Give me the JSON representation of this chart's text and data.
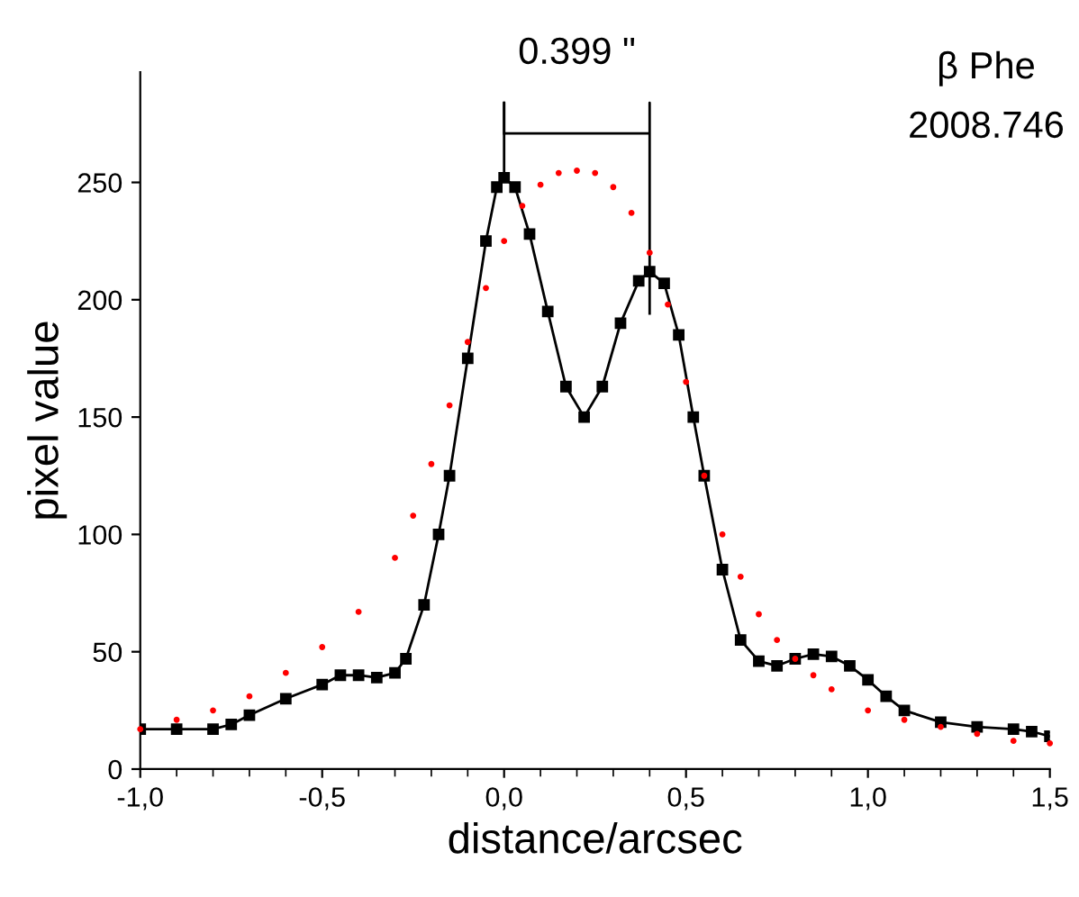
{
  "chart_data": {
    "type": "line",
    "xlabel": "distance/arcsec",
    "ylabel": "pixel value",
    "annotations": [
      "0.399 \"",
      "β Phe",
      "2008.746"
    ],
    "series": [
      {
        "color": "#000000",
        "marker": "square",
        "x": [
          -1.0,
          -0.9,
          -0.8,
          -0.75,
          -0.7,
          -0.6,
          -0.5,
          -0.45,
          -0.4,
          -0.35,
          -0.3,
          -0.27,
          -0.22,
          -0.18,
          -0.15,
          -0.1,
          -0.05,
          -0.02,
          0.0,
          0.03,
          0.07,
          0.12,
          0.17,
          0.22,
          0.27,
          0.32,
          0.37,
          0.4,
          0.44,
          0.48,
          0.52,
          0.55,
          0.6,
          0.65,
          0.7,
          0.75,
          0.8,
          0.85,
          0.9,
          0.95,
          1.0,
          1.05,
          1.1,
          1.2,
          1.3,
          1.4,
          1.45,
          1.5
        ],
        "values": [
          17,
          17,
          17,
          19,
          23,
          30,
          36,
          40,
          40,
          39,
          41,
          47,
          70,
          100,
          125,
          175,
          225,
          248,
          252,
          248,
          228,
          195,
          163,
          150,
          163,
          190,
          208,
          212,
          207,
          185,
          150,
          125,
          85,
          55,
          46,
          44,
          47,
          49,
          48,
          44,
          38,
          31,
          25,
          20,
          18,
          17,
          16,
          14
        ]
      },
      {
        "type": "scatter",
        "color": "#ff0000",
        "marker": "circle",
        "x": [
          -1.0,
          -0.9,
          -0.8,
          -0.7,
          -0.6,
          -0.5,
          -0.4,
          -0.3,
          -0.25,
          -0.2,
          -0.15,
          -0.1,
          -0.05,
          0.0,
          0.05,
          0.1,
          0.15,
          0.2,
          0.25,
          0.3,
          0.35,
          0.4,
          0.45,
          0.5,
          0.55,
          0.6,
          0.65,
          0.7,
          0.75,
          0.8,
          0.85,
          0.9,
          1.0,
          1.1,
          1.2,
          1.3,
          1.4,
          1.5
        ],
        "values": [
          17,
          21,
          25,
          31,
          41,
          52,
          67,
          90,
          108,
          130,
          155,
          182,
          205,
          225,
          240,
          249,
          254,
          255,
          254,
          248,
          237,
          220,
          198,
          165,
          125,
          100,
          82,
          66,
          55,
          47,
          40,
          34,
          25,
          21,
          18,
          15,
          12,
          11
        ]
      }
    ],
    "xlim": [
      -1.0,
      1.5
    ],
    "xticks": [
      {
        "value": -1.0,
        "label": "-1,0"
      },
      {
        "value": -0.5,
        "label": "-0,5"
      },
      {
        "value": 0.0,
        "label": "0,0"
      },
      {
        "value": 0.5,
        "label": "0,5"
      },
      {
        "value": 1.0,
        "label": "1,0"
      },
      {
        "value": 1.5,
        "label": "1,5"
      }
    ],
    "ylim": [
      0,
      297
    ],
    "yticks": [
      0,
      50,
      100,
      150,
      200,
      250
    ],
    "grid": false
  }
}
